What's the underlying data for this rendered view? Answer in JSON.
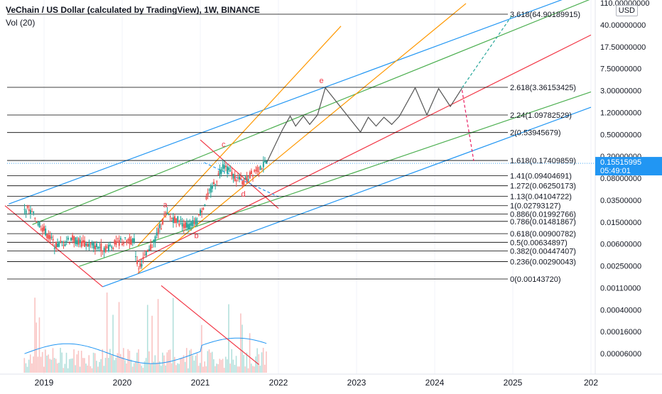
{
  "header": {
    "title": "VeChain / US Dollar (calculated by TradingView), 1W, BINANCE",
    "volume": "Vol (20)"
  },
  "currency_badge": "USD",
  "price_label": {
    "price": "0.15515995",
    "countdown": "05:49:01"
  },
  "chart_data": {
    "type": "candlestick",
    "symbol": "VETUSD",
    "interval": "1W",
    "exchange": "BINANCE",
    "y_scale": "log",
    "price_axis_ticks": [
      "110.00000000",
      "40.00000000",
      "17.50000000",
      "7.50000000",
      "3.00000000",
      "1.20000000",
      "0.50000000",
      "0.20000000",
      "0.08000000",
      "0.03500000",
      "0.01500000",
      "0.00600000",
      "0.00250000",
      "0.00110000",
      "0.00040000",
      "0.00016000",
      "0.00006000"
    ],
    "time_axis_ticks": [
      "2019",
      "2020",
      "2021",
      "2022",
      "2023",
      "2024",
      "2025",
      "202"
    ],
    "fib_levels": [
      {
        "label": "0(0.00143720)",
        "value": 0.0014372
      },
      {
        "label": "0.236(0.00290043)",
        "value": 0.00290043
      },
      {
        "label": "0.382(0.00447407)",
        "value": 0.00447407
      },
      {
        "label": "0.5(0.00634897)",
        "value": 0.00634897
      },
      {
        "label": "0.618(0.00900782)",
        "value": 0.00900782
      },
      {
        "label": "0.786(0.01481867)",
        "value": 0.01481867
      },
      {
        "label": "0.886(0.01992766)",
        "value": 0.01992766
      },
      {
        "label": "1(0.02793127)",
        "value": 0.02793127
      },
      {
        "label": "1.13(0.04104722)",
        "value": 0.04104722
      },
      {
        "label": "1.272(0.06250173)",
        "value": 0.06250173
      },
      {
        "label": "1.41(0.09404691)",
        "value": 0.09404691
      },
      {
        "label": "1.618(0.17409859)",
        "value": 0.17409859
      },
      {
        "label": "2(0.53945679)",
        "value": 0.53945679
      },
      {
        "label": "2.24(1.09782529)",
        "value": 1.09782529
      },
      {
        "label": "2.618(3.36153425)",
        "value": 3.36153425
      },
      {
        "label": "3.618(64.90189915)",
        "value": 64.90189915
      }
    ],
    "wave_labels": [
      "a",
      "b",
      "c",
      "d",
      "e"
    ],
    "price_series": [
      {
        "t": 2018.75,
        "p": 0.026
      },
      {
        "t": 2018.85,
        "p": 0.02
      },
      {
        "t": 2019.0,
        "p": 0.0105
      },
      {
        "t": 2019.15,
        "p": 0.0055
      },
      {
        "t": 2019.35,
        "p": 0.0075
      },
      {
        "t": 2019.5,
        "p": 0.006
      },
      {
        "t": 2019.65,
        "p": 0.0055
      },
      {
        "t": 2019.8,
        "p": 0.005
      },
      {
        "t": 2019.95,
        "p": 0.0065
      },
      {
        "t": 2020.15,
        "p": 0.007
      },
      {
        "t": 2020.2,
        "p": 0.0023
      },
      {
        "t": 2020.35,
        "p": 0.0045
      },
      {
        "t": 2020.55,
        "p": 0.019
      },
      {
        "t": 2020.7,
        "p": 0.016
      },
      {
        "t": 2020.85,
        "p": 0.012
      },
      {
        "t": 2020.95,
        "p": 0.015
      },
      {
        "t": 2021.1,
        "p": 0.042
      },
      {
        "t": 2021.3,
        "p": 0.15
      },
      {
        "t": 2021.4,
        "p": 0.1
      },
      {
        "t": 2021.55,
        "p": 0.07
      },
      {
        "t": 2021.7,
        "p": 0.12
      },
      {
        "t": 2021.85,
        "p": 0.155
      }
    ],
    "projection_path": [
      {
        "t": 2021.85,
        "p": 0.16
      },
      {
        "t": 2022.05,
        "p": 0.6
      },
      {
        "t": 2022.15,
        "p": 1.05
      },
      {
        "t": 2022.22,
        "p": 0.7
      },
      {
        "t": 2022.32,
        "p": 1.05
      },
      {
        "t": 2022.4,
        "p": 0.75
      },
      {
        "t": 2022.5,
        "p": 1.1
      },
      {
        "t": 2022.6,
        "p": 3.3
      },
      {
        "t": 2023.05,
        "p": 0.55
      },
      {
        "t": 2023.15,
        "p": 1.0
      },
      {
        "t": 2023.25,
        "p": 0.7
      },
      {
        "t": 2023.35,
        "p": 1.0
      },
      {
        "t": 2023.45,
        "p": 0.75
      },
      {
        "t": 2023.55,
        "p": 1.05
      },
      {
        "t": 2023.75,
        "p": 3.3
      },
      {
        "t": 2023.9,
        "p": 1.1
      },
      {
        "t": 2024.05,
        "p": 3.2
      },
      {
        "t": 2024.2,
        "p": 1.55
      },
      {
        "t": 2024.35,
        "p": 3.25
      }
    ],
    "projection_up": [
      {
        "t": 2024.35,
        "p": 3.3
      },
      {
        "t": 2025.0,
        "p": 64.9
      }
    ],
    "projection_down": [
      {
        "t": 2024.35,
        "p": 3.0
      },
      {
        "t": 2024.5,
        "p": 0.17
      }
    ],
    "colors": {
      "candle_up": "#26a69a",
      "candle_down": "#ef5350",
      "channel_blue": "#2196f3",
      "channel_green": "#4caf50",
      "channel_orange": "#ff9800",
      "channel_red": "#f23645",
      "fib_line": "#000000",
      "projection": "#555555",
      "volume_ma": "#2196f3",
      "price_label_bg": "#2196f3"
    }
  }
}
